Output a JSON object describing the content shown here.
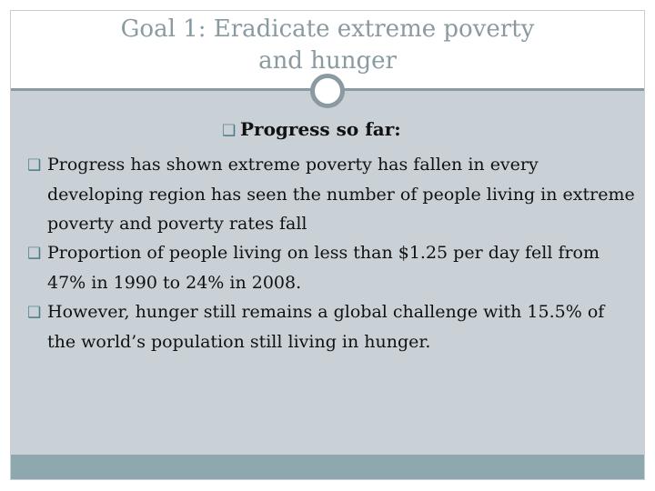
{
  "slide": {
    "title_line1": "Goal 1: Eradicate extreme poverty",
    "title_line2": "and hunger",
    "subtitle": "Progress so far:",
    "bullet_marker": "❑",
    "bullets": [
      "Progress has shown extreme poverty has fallen in every developing region has seen the number of people living in extreme poverty and poverty rates fall",
      "Proportion of people living on less than $1.25 per day fell from 47% in 1990 to 24% in 2008.",
      "However, hunger still remains a global challenge with 15.5% of the world’s population still living in hunger."
    ]
  },
  "colors": {
    "title_text": "#8a9aa1",
    "content_bg": "#c9d1d6",
    "footer_bg": "#8fa7ae",
    "accent": "#8a9aa1",
    "bullet_marker": "#4b7a86",
    "body_text": "#111111"
  }
}
